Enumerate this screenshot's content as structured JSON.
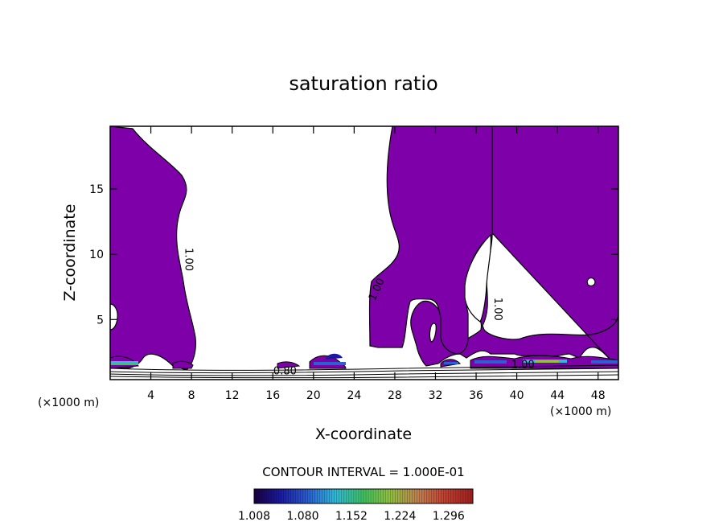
{
  "chart_data": {
    "type": "heatmap",
    "title": "saturation ratio",
    "xlabel": "X-coordinate",
    "ylabel": "Z-coordinate",
    "x_unit_left": "(×1000 m)",
    "x_unit_right": "(×1000 m)",
    "xlim": [
      0,
      50
    ],
    "ylim": [
      0.4,
      19.8
    ],
    "x_ticks": [
      {
        "value": 4,
        "label": "4"
      },
      {
        "value": 8,
        "label": "8"
      },
      {
        "value": 12,
        "label": "12"
      },
      {
        "value": 16,
        "label": "16"
      },
      {
        "value": 20,
        "label": "20"
      },
      {
        "value": 24,
        "label": "24"
      },
      {
        "value": 28,
        "label": "28"
      },
      {
        "value": 32,
        "label": "32"
      },
      {
        "value": 36,
        "label": "36"
      },
      {
        "value": 40,
        "label": "40"
      },
      {
        "value": 44,
        "label": "44"
      },
      {
        "value": 48,
        "label": "48"
      }
    ],
    "y_ticks": [
      {
        "value": 5,
        "label": "5"
      },
      {
        "value": 10,
        "label": "10"
      },
      {
        "value": 15,
        "label": "15"
      }
    ],
    "contour_labels": [
      {
        "x": 7.4,
        "z": 9.6,
        "text": "1.00",
        "rotate": 90
      },
      {
        "x": 26.5,
        "z": 7.2,
        "text": "1.00",
        "rotate": -65
      },
      {
        "x": 37.8,
        "z": 5.8,
        "text": "1.00",
        "rotate": 90
      },
      {
        "x": 40.6,
        "z": 1.3,
        "text": "1.00",
        "rotate": 0
      },
      {
        "x": 17.2,
        "z": 0.8,
        "text": "0.80",
        "rotate": 0
      }
    ],
    "contour_interval_label": "CONTOUR INTERVAL = 1.000E-01",
    "colorbar": {
      "labels": [
        "1.008",
        "1.080",
        "1.152",
        "1.224",
        "1.296"
      ],
      "min": 1.008,
      "max": 1.332,
      "colors": [
        "#1a0040",
        "#1a1aa0",
        "#2a60d0",
        "#30b8d8",
        "#40c060",
        "#90c040",
        "#c08050",
        "#c04030",
        "#a02020"
      ]
    },
    "fill_color": "#7d00a8"
  }
}
